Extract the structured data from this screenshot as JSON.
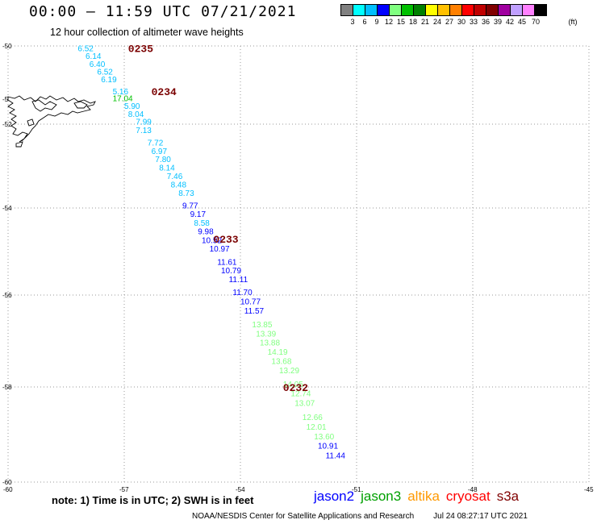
{
  "header": {
    "title": "00:00 – 11:59 UTC 07/21/2021",
    "subtitle": "12 hour collection of altimeter wave heights"
  },
  "colorbar": {
    "unit": "(ft)",
    "colors": [
      "#808080",
      "#00ffff",
      "#00bfff",
      "#0000ff",
      "#80ff80",
      "#00c000",
      "#008000",
      "#ffff00",
      "#ffc000",
      "#ff8000",
      "#ff0000",
      "#c00000",
      "#800000",
      "#a000a0",
      "#c0a0ff",
      "#ff80ff",
      "#000000"
    ],
    "labels": [
      "3",
      "6",
      "9",
      "12",
      "15",
      "18",
      "21",
      "24",
      "27",
      "30",
      "33",
      "36",
      "39",
      "42",
      "45",
      "70"
    ]
  },
  "map": {
    "lon_range": [
      -60,
      -45
    ],
    "lat_range": [
      -60,
      -50
    ],
    "lon_ticks": [
      "-60",
      "-57",
      "-54",
      "-51",
      "-48",
      "-45"
    ],
    "lat_ticks": [
      "-50",
      "-52",
      "-54",
      "-56",
      "-58",
      "-60"
    ],
    "partial_lat_tick": "-5",
    "grid_color": "#999999"
  },
  "passes": [
    {
      "label": "0235",
      "lon": -56.9,
      "lat": -50.05
    },
    {
      "label": "0234",
      "lon": -56.3,
      "lat": -51.15
    },
    {
      "label": "0233",
      "lon": -54.7,
      "lat": -54.7
    },
    {
      "label": "0232",
      "lon": -52.9,
      "lat": -58.0
    }
  ],
  "wave_heights": [
    {
      "value": "6.52",
      "lon": -58.2,
      "lat": -50.05,
      "color": "#00bfff"
    },
    {
      "value": "6.14",
      "lon": -58.0,
      "lat": -50.25,
      "color": "#00bfff"
    },
    {
      "value": "6.40",
      "lon": -57.9,
      "lat": -50.45,
      "color": "#00bfff"
    },
    {
      "value": "6.52",
      "lon": -57.7,
      "lat": -50.65,
      "color": "#00bfff"
    },
    {
      "value": "6.19",
      "lon": -57.6,
      "lat": -50.85,
      "color": "#00bfff"
    },
    {
      "value": "5.16",
      "lon": -57.3,
      "lat": -51.15,
      "color": "#00bfff"
    },
    {
      "value": "17.04",
      "lon": -57.3,
      "lat": -51.33,
      "color": "#00c000"
    },
    {
      "value": "5.90",
      "lon": -57.0,
      "lat": -51.53,
      "color": "#00bfff"
    },
    {
      "value": "8.04",
      "lon": -56.9,
      "lat": -51.73,
      "color": "#00bfff"
    },
    {
      "value": "7.99",
      "lon": -56.7,
      "lat": -51.93,
      "color": "#00bfff"
    },
    {
      "value": "7.13",
      "lon": -56.7,
      "lat": -52.13,
      "color": "#00bfff"
    },
    {
      "value": "7.72",
      "lon": -56.4,
      "lat": -52.43,
      "color": "#00bfff"
    },
    {
      "value": "6.97",
      "lon": -56.3,
      "lat": -52.63,
      "color": "#00bfff"
    },
    {
      "value": "7.80",
      "lon": -56.2,
      "lat": -52.83,
      "color": "#00bfff"
    },
    {
      "value": "8.14",
      "lon": -56.1,
      "lat": -53.03,
      "color": "#00bfff"
    },
    {
      "value": "7.46",
      "lon": -55.9,
      "lat": -53.23,
      "color": "#00bfff"
    },
    {
      "value": "8.48",
      "lon": -55.8,
      "lat": -53.43,
      "color": "#00bfff"
    },
    {
      "value": "8.73",
      "lon": -55.6,
      "lat": -53.63,
      "color": "#00bfff"
    },
    {
      "value": "9.77",
      "lon": -55.5,
      "lat": -53.93,
      "color": "#0000ff"
    },
    {
      "value": "9.17",
      "lon": -55.3,
      "lat": -54.13,
      "color": "#0000ff"
    },
    {
      "value": "8.58",
      "lon": -55.2,
      "lat": -54.33,
      "color": "#00bfff"
    },
    {
      "value": "9.98",
      "lon": -55.1,
      "lat": -54.53,
      "color": "#0000ff"
    },
    {
      "value": "10.52",
      "lon": -55.0,
      "lat": -54.73,
      "color": "#0000ff"
    },
    {
      "value": "10.97",
      "lon": -54.8,
      "lat": -54.93,
      "color": "#0000ff"
    },
    {
      "value": "11.61",
      "lon": -54.6,
      "lat": -55.23,
      "color": "#0000ff"
    },
    {
      "value": "10.79",
      "lon": -54.5,
      "lat": -55.43,
      "color": "#0000ff"
    },
    {
      "value": "11.11",
      "lon": -54.3,
      "lat": -55.63,
      "color": "#0000ff"
    },
    {
      "value": "11.70",
      "lon": -54.2,
      "lat": -55.93,
      "color": "#0000ff"
    },
    {
      "value": "10.77",
      "lon": -54.0,
      "lat": -56.13,
      "color": "#0000ff"
    },
    {
      "value": "11.57",
      "lon": -53.9,
      "lat": -56.33,
      "color": "#0000ff"
    },
    {
      "value": "13.85",
      "lon": -53.7,
      "lat": -56.63,
      "color": "#80ff80"
    },
    {
      "value": "13.39",
      "lon": -53.6,
      "lat": -56.83,
      "color": "#80ff80"
    },
    {
      "value": "13.88",
      "lon": -53.5,
      "lat": -57.03,
      "color": "#80ff80"
    },
    {
      "value": "14.19",
      "lon": -53.3,
      "lat": -57.23,
      "color": "#80ff80"
    },
    {
      "value": "13.68",
      "lon": -53.2,
      "lat": -57.43,
      "color": "#80ff80"
    },
    {
      "value": "13.29",
      "lon": -53.0,
      "lat": -57.63,
      "color": "#80ff80"
    },
    {
      "value": "14.05",
      "lon": -52.9,
      "lat": -57.93,
      "color": "#80ff80"
    },
    {
      "value": "12.74",
      "lon": -52.7,
      "lat": -58.13,
      "color": "#80ff80"
    },
    {
      "value": "13.07",
      "lon": -52.6,
      "lat": -58.33,
      "color": "#80ff80"
    },
    {
      "value": "12.66",
      "lon": -52.4,
      "lat": -58.63,
      "color": "#80ff80"
    },
    {
      "value": "12.01",
      "lon": -52.3,
      "lat": -58.83,
      "color": "#80ff80"
    },
    {
      "value": "13.60",
      "lon": -52.1,
      "lat": -59.03,
      "color": "#80ff80"
    },
    {
      "value": "10.91",
      "lon": -52.0,
      "lat": -59.23,
      "color": "#0000ff"
    },
    {
      "value": "11.44",
      "lon": -51.8,
      "lat": -59.43,
      "color": "#0000ff"
    }
  ],
  "note": "note: 1) Time is in UTC; 2) SWH is in feet",
  "legend": [
    {
      "name": "jason2",
      "color": "#0000ff"
    },
    {
      "name": "jason3",
      "color": "#00a000"
    },
    {
      "name": "altika",
      "color": "#ff9900"
    },
    {
      "name": "cryosat",
      "color": "#ff0000"
    },
    {
      "name": "s3a",
      "color": "#800000"
    }
  ],
  "footer": {
    "credit": "NOAA/NESDIS Center for Satellite Applications and Research",
    "timestamp": "Jul 24 08:27:17 UTC 2021"
  }
}
